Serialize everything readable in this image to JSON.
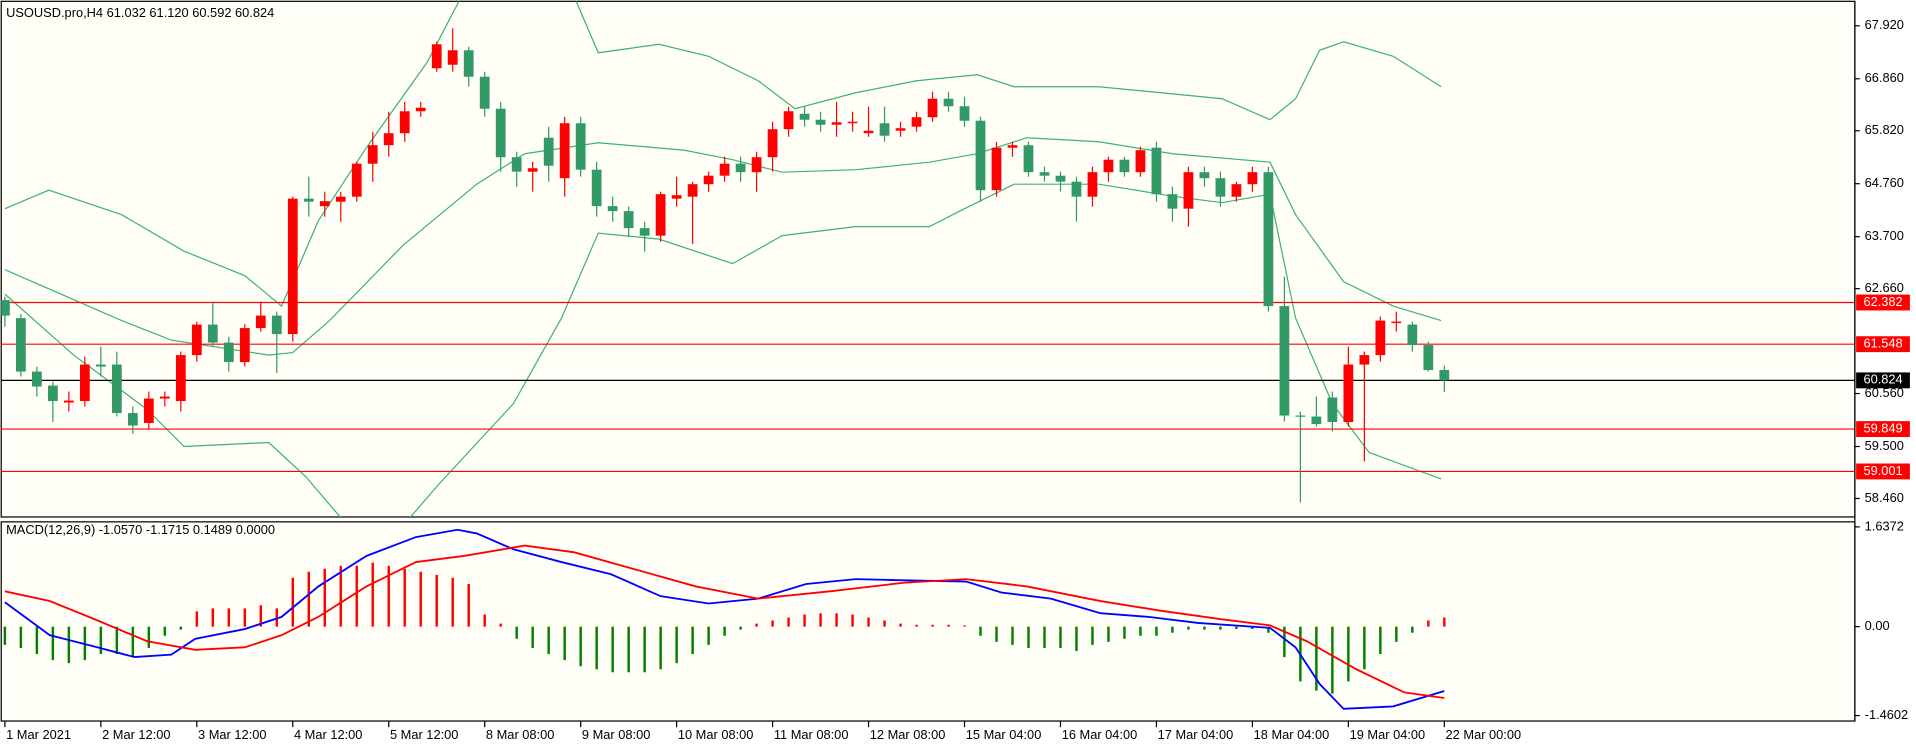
{
  "chart_data": [
    {
      "type": "candlestick",
      "title": "USOUSD.pro,H4  61.032 61.120 60.592 60.824",
      "categories": [
        "1 Mar 2021",
        null,
        null,
        null,
        null,
        null,
        "2 Mar 12:00",
        null,
        null,
        null,
        null,
        null,
        "3 Mar 12:00",
        null,
        null,
        null,
        null,
        null,
        "4 Mar 12:00",
        null,
        null,
        null,
        null,
        null,
        "5 Mar 12:00",
        null,
        null,
        null,
        null,
        null,
        "8 Mar 08:00",
        null,
        null,
        null,
        null,
        null,
        "9 Mar 08:00",
        null,
        null,
        null,
        null,
        null,
        "10 Mar 08:00",
        null,
        null,
        null,
        null,
        null,
        "11 Mar 08:00",
        null,
        null,
        null,
        null,
        null,
        "12 Mar 08:00",
        null,
        null,
        null,
        null,
        null,
        "15 Mar 04:00",
        null,
        null,
        null,
        null,
        null,
        "16 Mar 04:00",
        null,
        null,
        null,
        null,
        null,
        "17 Mar 04:00",
        null,
        null,
        null,
        null,
        null,
        "18 Mar 04:00",
        null,
        null,
        null,
        null,
        null,
        "19 Mar 04:00",
        null,
        null,
        null,
        null,
        null,
        "22 Mar 00:00"
      ],
      "open": [
        62.43,
        62.07,
        61.0,
        60.72,
        60.38,
        60.41,
        61.14,
        61.14,
        60.17,
        59.97,
        60.46,
        60.41,
        61.33,
        61.94,
        61.58,
        61.19,
        61.87,
        62.12,
        61.75,
        64.46,
        64.31,
        64.4,
        64.5,
        65.16,
        65.53,
        65.77,
        66.21,
        67.07,
        67.14,
        67.43,
        66.9,
        66.26,
        65.29,
        65.0,
        65.68,
        64.87,
        65.97,
        65.04,
        64.31,
        64.21,
        63.87,
        63.72,
        64.46,
        64.5,
        64.75,
        64.92,
        65.16,
        64.99,
        65.29,
        65.85,
        66.16,
        66.04,
        65.94,
        65.97,
        65.77,
        65.97,
        65.82,
        65.9,
        66.09,
        66.46,
        66.31,
        66.02,
        64.63,
        65.48,
        65.53,
        64.99,
        64.92,
        64.8,
        64.5,
        64.99,
        65.24,
        64.99,
        65.48,
        64.55,
        64.26,
        64.99,
        64.87,
        64.5,
        64.75,
        64.99,
        62.31,
        60.12,
        60.1,
        60.48,
        59.99,
        61.14,
        61.33,
        61.97,
        61.94,
        61.53,
        61.032
      ],
      "high": [
        62.5,
        62.15,
        61.1,
        60.8,
        60.6,
        61.3,
        61.5,
        61.4,
        60.3,
        60.6,
        60.6,
        61.4,
        62.0,
        62.4,
        61.7,
        61.95,
        62.4,
        62.2,
        64.5,
        64.9,
        64.6,
        64.6,
        65.2,
        65.8,
        66.2,
        66.4,
        66.4,
        67.6,
        67.87,
        67.5,
        67.0,
        66.4,
        65.4,
        65.2,
        65.9,
        66.1,
        66.1,
        65.2,
        64.5,
        64.3,
        64.0,
        64.6,
        64.9,
        64.8,
        65.0,
        65.3,
        65.3,
        65.4,
        66.0,
        66.3,
        66.3,
        66.2,
        66.4,
        66.2,
        66.3,
        66.3,
        66.0,
        66.2,
        66.6,
        66.6,
        66.5,
        66.1,
        65.6,
        65.6,
        65.6,
        65.1,
        65.0,
        64.9,
        65.1,
        65.3,
        65.3,
        65.5,
        65.6,
        64.7,
        65.1,
        65.1,
        65.0,
        64.8,
        65.1,
        65.1,
        62.9,
        60.2,
        60.5,
        60.6,
        61.5,
        61.4,
        62.1,
        62.2,
        62.0,
        61.6,
        61.12
      ],
      "low": [
        61.9,
        60.9,
        60.5,
        59.99,
        60.2,
        60.3,
        60.9,
        60.1,
        59.75,
        59.85,
        60.3,
        60.2,
        61.2,
        61.5,
        61.0,
        61.1,
        61.8,
        60.97,
        61.6,
        64.1,
        64.1,
        64.0,
        64.4,
        64.8,
        65.3,
        65.6,
        66.1,
        67.0,
        67.0,
        66.7,
        66.1,
        65.0,
        64.7,
        64.6,
        64.8,
        64.5,
        64.9,
        64.1,
        64.0,
        63.7,
        63.4,
        63.6,
        64.3,
        63.55,
        64.6,
        64.8,
        64.8,
        64.6,
        65.0,
        65.7,
        65.9,
        65.8,
        65.7,
        65.8,
        65.7,
        65.6,
        65.7,
        65.8,
        66.0,
        66.2,
        65.9,
        64.4,
        64.5,
        65.3,
        64.9,
        64.8,
        64.6,
        64.0,
        64.3,
        64.8,
        64.9,
        64.9,
        64.4,
        64.0,
        63.9,
        64.7,
        64.3,
        64.4,
        64.6,
        62.2,
        60.0,
        58.38,
        59.9,
        59.8,
        59.9,
        59.2,
        61.2,
        61.8,
        61.4,
        61.0,
        60.592
      ],
      "close": [
        62.12,
        61.0,
        60.7,
        60.41,
        60.42,
        61.14,
        61.1,
        60.17,
        59.92,
        60.46,
        60.5,
        61.33,
        61.94,
        61.58,
        61.19,
        61.87,
        62.12,
        61.75,
        64.46,
        64.4,
        64.41,
        64.5,
        65.16,
        65.53,
        65.77,
        66.21,
        66.28,
        67.55,
        67.43,
        66.9,
        66.26,
        65.29,
        65.0,
        65.07,
        65.12,
        65.97,
        65.04,
        64.31,
        64.21,
        63.87,
        63.72,
        64.55,
        64.53,
        64.75,
        64.92,
        65.16,
        64.99,
        65.29,
        65.85,
        66.21,
        66.04,
        65.94,
        65.99,
        66.0,
        65.82,
        65.72,
        65.87,
        66.09,
        66.46,
        66.31,
        66.02,
        64.63,
        65.48,
        65.53,
        64.99,
        64.92,
        64.8,
        64.5,
        64.99,
        65.24,
        64.99,
        65.43,
        64.55,
        64.26,
        64.99,
        64.87,
        64.5,
        64.75,
        64.99,
        62.31,
        60.12,
        60.1,
        59.95,
        59.99,
        61.14,
        61.33,
        62.02,
        62.0,
        61.53,
        61.03,
        60.824
      ],
      "color_up": "#ff0000",
      "color_down": "#339966",
      "ylim": [
        58.09,
        68.41
      ],
      "yticks": [
        {
          "value": 67.92,
          "label": "67.920"
        },
        {
          "value": 66.86,
          "label": "66.860"
        },
        {
          "value": 65.82,
          "label": "65.820"
        },
        {
          "value": 64.76,
          "label": "64.760"
        },
        {
          "value": 63.7,
          "label": "63.700"
        },
        {
          "value": 62.66,
          "label": "62.660"
        },
        {
          "value": 60.56,
          "label": "60.560"
        },
        {
          "value": 59.5,
          "label": "59.500"
        },
        {
          "value": 58.46,
          "label": "58.460"
        }
      ],
      "levels": [
        {
          "value": 62.382,
          "color": "#ff0000"
        },
        {
          "value": 61.548,
          "color": "#ff0000"
        },
        {
          "value": 60.824,
          "color": "#000000"
        },
        {
          "value": 59.849,
          "color": "#ff0000"
        },
        {
          "value": 59.001,
          "color": "#ff0000"
        }
      ],
      "series": [
        {
          "color": "#3cb371",
          "x": [
            0,
            2.75,
            7.3,
            11.2,
            15.0,
            17.3,
            19.6,
            22.6,
            26.4,
            28.7,
            31.8,
            35.6,
            37.1,
            40.9,
            44.0,
            47.1,
            49.4,
            53.2,
            57.0,
            60.8,
            63.1,
            68.4,
            72.3,
            76.1,
            79.1,
            80.7,
            82.2,
            83.7,
            86.8,
            89.8
          ],
          "values": [
            64.26,
            64.63,
            64.14,
            63.41,
            62.92,
            62.31,
            64.02,
            65.48,
            67.19,
            68.6,
            68.9,
            68.5,
            67.38,
            67.55,
            67.31,
            66.82,
            66.26,
            66.58,
            66.82,
            66.94,
            66.7,
            66.7,
            66.58,
            66.46,
            66.04,
            66.46,
            67.43,
            67.6,
            67.31,
            66.7
          ]
        },
        {
          "color": "#3cb371",
          "x": [
            0,
            3.5,
            7.3,
            10.4,
            16.5,
            18.0,
            20.3,
            24.9,
            29.5,
            32.5,
            37.1,
            42.5,
            45.5,
            48.6,
            53.2,
            57.8,
            60.8,
            63.9,
            68.4,
            73.0,
            79.1,
            80.7,
            83.7,
            86.8,
            89.8
          ],
          "values": [
            63.04,
            62.55,
            62.02,
            61.63,
            61.33,
            61.38,
            62.02,
            63.53,
            64.75,
            65.36,
            65.58,
            65.43,
            65.24,
            64.99,
            65.04,
            65.19,
            65.36,
            65.68,
            65.6,
            65.36,
            65.19,
            64.14,
            62.8,
            62.31,
            62.02
          ]
        },
        {
          "color": "#3cb371",
          "x": [
            0,
            4.3,
            8.9,
            11.2,
            16.5,
            18.8,
            21.1,
            24.9,
            27.2,
            31.8,
            34.8,
            37.1,
            40.9,
            45.5,
            48.6,
            53.2,
            57.8,
            60.0,
            63.1,
            68.4,
            73.0,
            76.1,
            79.1,
            80.7,
            83.0,
            85.3,
            89.8
          ],
          "values": [
            62.55,
            61.33,
            60.24,
            59.5,
            59.58,
            58.9,
            58.04,
            57.92,
            58.77,
            60.36,
            62.07,
            63.77,
            63.65,
            63.16,
            63.72,
            63.9,
            63.9,
            64.26,
            64.75,
            64.75,
            64.51,
            64.38,
            64.55,
            62.07,
            60.36,
            59.38,
            58.85
          ]
        }
      ]
    },
    {
      "type": "macd",
      "title": "MACD(12,26,9) -1.0570 -1.1715 0.1489 0.0000",
      "ylim": [
        -1.55,
        1.72
      ],
      "yticks": [
        1.6372,
        {
          "value": 0,
          "label": "0.00"
        },
        -1.4602
      ],
      "color_pos": "#ff0000",
      "color_neg": "#008000",
      "values": [
        -0.3,
        -0.35,
        -0.45,
        -0.55,
        -0.6,
        -0.55,
        -0.45,
        -0.45,
        -0.5,
        -0.35,
        -0.15,
        -0.05,
        0.25,
        0.3,
        0.3,
        0.3,
        0.35,
        0.3,
        0.8,
        0.9,
        0.95,
        1.0,
        1.0,
        1.05,
        1.0,
        0.95,
        0.9,
        0.85,
        0.8,
        0.7,
        0.2,
        0.05,
        -0.2,
        -0.35,
        -0.45,
        -0.55,
        -0.65,
        -0.7,
        -0.75,
        -0.75,
        -0.75,
        -0.7,
        -0.6,
        -0.45,
        -0.3,
        -0.15,
        -0.05,
        0.05,
        0.1,
        0.15,
        0.2,
        0.22,
        0.22,
        0.2,
        0.15,
        0.1,
        0.05,
        0.03,
        0.03,
        0.03,
        0.02,
        -0.15,
        -0.25,
        -0.3,
        -0.35,
        -0.35,
        -0.35,
        -0.4,
        -0.3,
        -0.25,
        -0.2,
        -0.15,
        -0.15,
        -0.1,
        -0.05,
        -0.05,
        -0.05,
        -0.04,
        -0.04,
        -0.1,
        -0.5,
        -0.9,
        -1.05,
        -1.1,
        -0.9,
        -0.7,
        -0.45,
        -0.25,
        -0.1,
        0.1,
        0.1489
      ],
      "series": [
        {
          "color": "#0000ff",
          "x": [
            0,
            2.8,
            5.8,
            8.1,
            10.4,
            11.9,
            15.0,
            17.3,
            19.6,
            22.6,
            25.7,
            28.3,
            29.5,
            31.8,
            34.8,
            37.9,
            41.0,
            44.0,
            47.1,
            50.1,
            53.2,
            56.2,
            60.1,
            62.3,
            65.4,
            68.5,
            71.5,
            74.6,
            79.1,
            80.7,
            82.2,
            83.7,
            86.8,
            90
          ],
          "values": [
            0.4,
            -0.14,
            -0.34,
            -0.5,
            -0.46,
            -0.2,
            -0.04,
            0.16,
            0.66,
            1.16,
            1.47,
            1.59,
            1.53,
            1.27,
            1.06,
            0.86,
            0.5,
            0.38,
            0.46,
            0.7,
            0.78,
            0.76,
            0.74,
            0.56,
            0.46,
            0.22,
            0.16,
            0.06,
            -0.02,
            -0.34,
            -0.94,
            -1.35,
            -1.31,
            -1.057
          ]
        },
        {
          "color": "#ff0000",
          "x": [
            0,
            2.8,
            5.8,
            8.9,
            11.9,
            15.0,
            17.3,
            19.6,
            22.6,
            25.7,
            28.7,
            32.5,
            35.6,
            39.4,
            43.2,
            47.1,
            51.6,
            56.2,
            60.1,
            63.9,
            68.5,
            72.3,
            76.1,
            79.1,
            81.4,
            84.5,
            87.5,
            90
          ],
          "values": [
            0.58,
            0.42,
            0.1,
            -0.24,
            -0.38,
            -0.34,
            -0.14,
            0.16,
            0.66,
            1.06,
            1.16,
            1.33,
            1.22,
            0.94,
            0.66,
            0.46,
            0.58,
            0.72,
            0.78,
            0.66,
            0.42,
            0.26,
            0.12,
            0.02,
            -0.24,
            -0.7,
            -1.08,
            -1.1715
          ]
        }
      ]
    }
  ]
}
